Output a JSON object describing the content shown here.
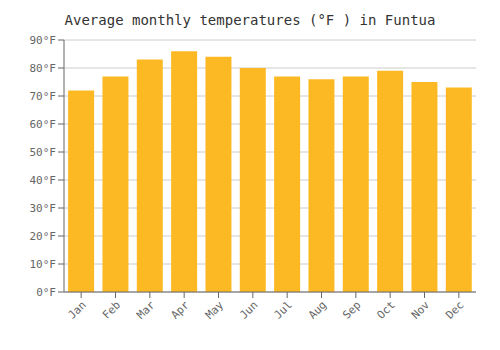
{
  "chart_data": {
    "type": "bar",
    "title": "Average monthly temperatures (°F ) in Funtua",
    "categories": [
      "Jan",
      "Feb",
      "Mar",
      "Apr",
      "May",
      "Jun",
      "Jul",
      "Aug",
      "Sep",
      "Oct",
      "Nov",
      "Dec"
    ],
    "values": [
      72,
      77,
      83,
      86,
      84,
      80,
      77,
      76,
      77,
      79,
      75,
      73
    ],
    "color": "#FDB924",
    "ylim": [
      0,
      90
    ],
    "yticks": [
      {
        "value": 0,
        "label": "0°F"
      },
      {
        "value": 10,
        "label": "10°F"
      },
      {
        "value": 20,
        "label": "20°F"
      },
      {
        "value": 30,
        "label": "30°F"
      },
      {
        "value": 40,
        "label": "40°F"
      },
      {
        "value": 50,
        "label": "50°F"
      },
      {
        "value": 60,
        "label": "60°F"
      },
      {
        "value": 70,
        "label": "70°F"
      },
      {
        "value": 80,
        "label": "80°F"
      },
      {
        "value": 90,
        "label": "90°F"
      }
    ],
    "grid": true
  }
}
